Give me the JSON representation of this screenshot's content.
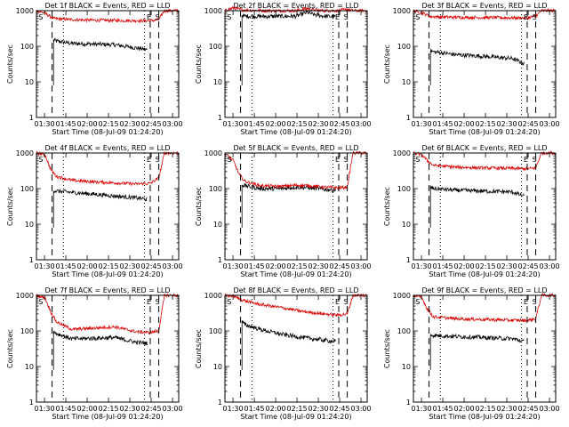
{
  "colors": {
    "events": "#000000",
    "lld": "#dd0000",
    "axes": "#000000"
  },
  "shared": {
    "xlabel": "Start Time (08-Jul-09 01:24:20)",
    "ylabel": "Counts/sec",
    "x_ticks": [
      "01:30",
      "01:45",
      "02:00",
      "02:15",
      "02:30",
      "02:45",
      "03:00"
    ],
    "x_tick_minutes": [
      5.67,
      20.67,
      35.67,
      50.67,
      65.67,
      80.67,
      95.67
    ],
    "xlim_minutes": [
      0,
      100
    ],
    "y_ticks": [
      "1",
      "10",
      "100",
      "1000"
    ],
    "y_tick_values": [
      1,
      10,
      100,
      1000
    ],
    "ylim": [
      1,
      1000
    ],
    "y_scale": "log",
    "series_names": [
      "Events",
      "LLD"
    ],
    "markers": [
      "S",
      "E",
      "S"
    ]
  },
  "chart_data": [
    {
      "type": "line",
      "title": "Det 1f BLACK = Events, RED = LLD",
      "dashed_lines_minutes": [
        11,
        80,
        86
      ],
      "dotted_lines_minutes": [
        19,
        76
      ],
      "series": [
        {
          "name": "Events",
          "start": 12,
          "end": 78,
          "x": [
            12,
            14,
            25,
            40,
            55,
            70,
            78
          ],
          "values": [
            150,
            140,
            120,
            115,
            110,
            90,
            80
          ]
        },
        {
          "name": "LLD",
          "start": 0,
          "end": 100,
          "x": [
            0,
            6,
            12,
            25,
            40,
            60,
            80,
            86,
            90,
            100
          ],
          "values": [
            1000,
            850,
            600,
            560,
            540,
            530,
            520,
            560,
            1000,
            1000
          ]
        }
      ]
    },
    {
      "type": "line",
      "title": "Det 2f BLACK = Events, RED = LLD",
      "dashed_lines_minutes": [
        11,
        80,
        86
      ],
      "dotted_lines_minutes": [
        19,
        76
      ],
      "series": [
        {
          "name": "Events",
          "start": 12,
          "end": 78,
          "x": [
            12,
            14,
            30,
            50,
            58,
            62,
            70,
            78
          ],
          "values": [
            750,
            700,
            690,
            700,
            900,
            780,
            700,
            680
          ]
        },
        {
          "name": "LLD",
          "start": 0,
          "end": 100,
          "x": [
            0,
            6,
            12,
            30,
            50,
            58,
            62,
            70,
            80,
            86,
            90,
            100
          ],
          "values": [
            1000,
            1200,
            1050,
            1000,
            1000,
            1150,
            1050,
            1000,
            1000,
            1100,
            1000,
            1000
          ]
        }
      ]
    },
    {
      "type": "line",
      "title": "Det 3f BLACK = Events, RED = LLD",
      "dashed_lines_minutes": [
        11,
        80,
        86
      ],
      "dotted_lines_minutes": [
        19,
        76
      ],
      "series": [
        {
          "name": "Events",
          "start": 12,
          "end": 78,
          "x": [
            12,
            14,
            30,
            50,
            70,
            78
          ],
          "values": [
            75,
            70,
            58,
            52,
            45,
            32
          ]
        },
        {
          "name": "LLD",
          "start": 0,
          "end": 100,
          "x": [
            0,
            6,
            12,
            30,
            50,
            70,
            80,
            86,
            90,
            100
          ],
          "values": [
            1000,
            880,
            680,
            650,
            640,
            630,
            620,
            700,
            1000,
            1000
          ]
        }
      ]
    },
    {
      "type": "line",
      "title": "Det 4f BLACK = Events, RED = LLD",
      "dashed_lines_minutes": [
        11,
        80,
        86
      ],
      "dotted_lines_minutes": [
        19,
        76
      ],
      "series": [
        {
          "name": "Events",
          "start": 12,
          "end": 78,
          "x": [
            12,
            14,
            25,
            40,
            55,
            70,
            78
          ],
          "values": [
            90,
            85,
            78,
            70,
            62,
            55,
            50
          ]
        },
        {
          "name": "LLD",
          "start": 0,
          "end": 100,
          "x": [
            0,
            6,
            10,
            14,
            25,
            40,
            55,
            70,
            80,
            86,
            90,
            100
          ],
          "values": [
            1000,
            900,
            350,
            220,
            170,
            155,
            145,
            135,
            140,
            200,
            1000,
            1000
          ]
        }
      ]
    },
    {
      "type": "line",
      "title": "Det 5f BLACK = Events, RED = LLD",
      "dashed_lines_minutes": [
        11,
        80,
        86
      ],
      "dotted_lines_minutes": [
        19,
        76
      ],
      "series": [
        {
          "name": "Events",
          "start": 12,
          "end": 78,
          "x": [
            12,
            14,
            25,
            40,
            50,
            60,
            70,
            78
          ],
          "values": [
            130,
            120,
            100,
            100,
            110,
            105,
            95,
            90
          ]
        },
        {
          "name": "LLD",
          "start": 0,
          "end": 100,
          "x": [
            0,
            6,
            10,
            14,
            25,
            40,
            50,
            60,
            70,
            80,
            86,
            90,
            100
          ],
          "values": [
            1000,
            600,
            250,
            160,
            120,
            115,
            125,
            120,
            110,
            105,
            110,
            1000,
            1000
          ]
        }
      ]
    },
    {
      "type": "line",
      "title": "Det 6f BLACK = Events, RED = LLD",
      "dashed_lines_minutes": [
        11,
        80,
        86
      ],
      "dotted_lines_minutes": [
        19,
        76
      ],
      "series": [
        {
          "name": "Events",
          "start": 12,
          "end": 78,
          "x": [
            12,
            14,
            30,
            50,
            70,
            78
          ],
          "values": [
            110,
            100,
            90,
            85,
            80,
            60
          ]
        },
        {
          "name": "LLD",
          "start": 0,
          "end": 100,
          "x": [
            0,
            6,
            10,
            14,
            30,
            50,
            70,
            80,
            86,
            90,
            100
          ],
          "values": [
            1000,
            900,
            600,
            450,
            400,
            380,
            370,
            360,
            380,
            1000,
            1000
          ]
        }
      ]
    },
    {
      "type": "line",
      "title": "Det 7f BLACK = Events, RED = LLD",
      "dashed_lines_minutes": [
        11,
        80,
        86
      ],
      "dotted_lines_minutes": [
        19,
        76
      ],
      "series": [
        {
          "name": "Events",
          "start": 12,
          "end": 78,
          "x": [
            12,
            14,
            25,
            40,
            55,
            70,
            78
          ],
          "values": [
            95,
            85,
            60,
            62,
            65,
            48,
            45
          ]
        },
        {
          "name": "LLD",
          "start": 0,
          "end": 100,
          "x": [
            0,
            6,
            10,
            14,
            25,
            40,
            55,
            70,
            80,
            86,
            90,
            100
          ],
          "values": [
            1000,
            850,
            350,
            180,
            110,
            120,
            130,
            95,
            90,
            100,
            1000,
            1000
          ]
        }
      ]
    },
    {
      "type": "line",
      "title": "Det 8f BLACK = Events, RED = LLD",
      "dashed_lines_minutes": [
        11,
        80,
        86
      ],
      "dotted_lines_minutes": [
        19,
        76
      ],
      "series": [
        {
          "name": "Events",
          "start": 12,
          "end": 78,
          "x": [
            12,
            14,
            25,
            40,
            55,
            70,
            78
          ],
          "values": [
            180,
            150,
            110,
            80,
            65,
            55,
            50
          ]
        },
        {
          "name": "LLD",
          "start": 0,
          "end": 100,
          "x": [
            0,
            6,
            10,
            14,
            25,
            40,
            55,
            70,
            80,
            86,
            90,
            100
          ],
          "values": [
            1000,
            950,
            800,
            700,
            550,
            450,
            350,
            300,
            280,
            300,
            1000,
            1000
          ]
        }
      ]
    },
    {
      "type": "line",
      "title": "Det 9f BLACK = Events, RED = LLD",
      "dashed_lines_minutes": [
        11,
        80,
        86
      ],
      "dotted_lines_minutes": [
        19,
        76
      ],
      "series": [
        {
          "name": "Events",
          "start": 12,
          "end": 78,
          "x": [
            12,
            14,
            30,
            50,
            70,
            78
          ],
          "values": [
            80,
            75,
            70,
            65,
            60,
            50
          ]
        },
        {
          "name": "LLD",
          "start": 0,
          "end": 100,
          "x": [
            0,
            6,
            10,
            14,
            30,
            50,
            70,
            80,
            86,
            90,
            100
          ],
          "values": [
            1000,
            850,
            400,
            250,
            220,
            210,
            200,
            195,
            220,
            1000,
            1000
          ]
        }
      ]
    }
  ]
}
